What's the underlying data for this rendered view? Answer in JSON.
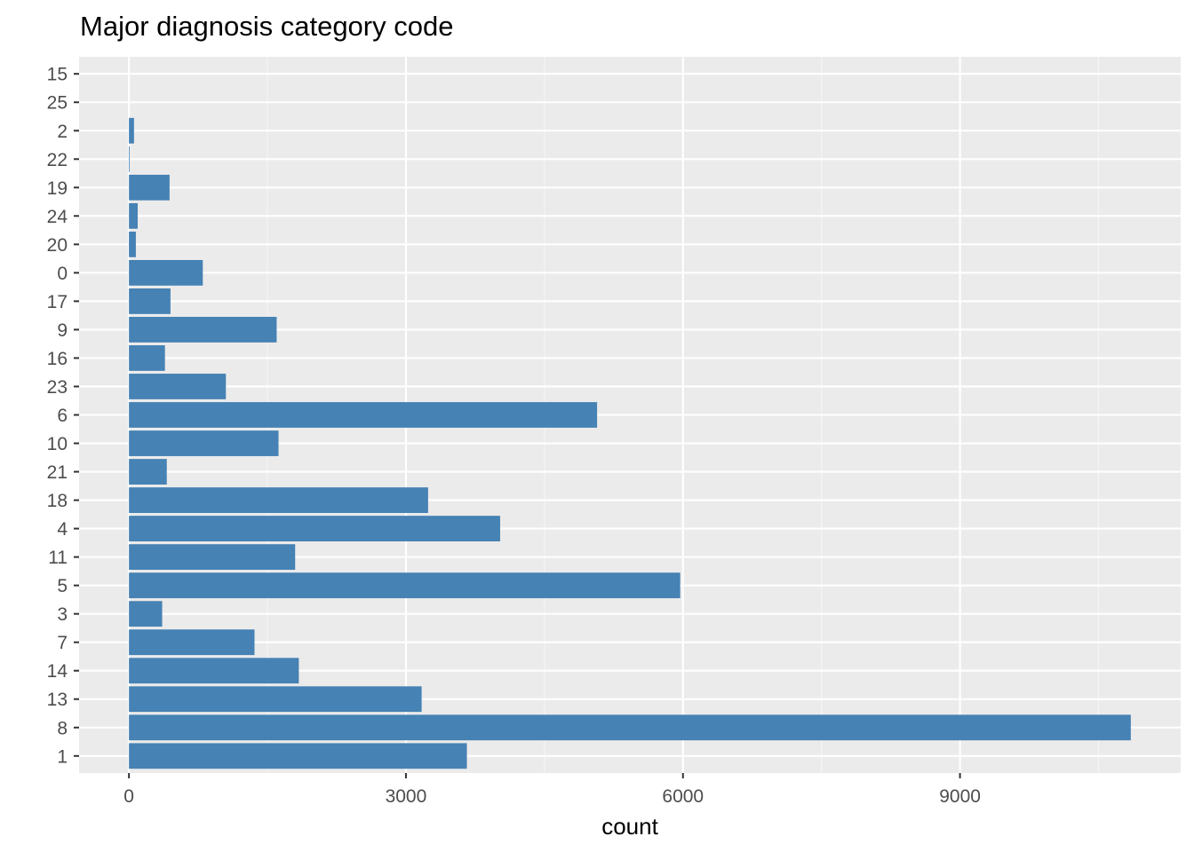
{
  "chart_data": {
    "type": "bar",
    "orientation": "horizontal",
    "title": "Major diagnosis category code",
    "xlabel": "count",
    "ylabel": "",
    "categories": [
      "15",
      "25",
      "2",
      "22",
      "19",
      "24",
      "20",
      "0",
      "17",
      "9",
      "16",
      "23",
      "6",
      "10",
      "21",
      "18",
      "4",
      "11",
      "5",
      "3",
      "7",
      "14",
      "13",
      "8",
      "1"
    ],
    "values": [
      0,
      0,
      55,
      8,
      440,
      95,
      75,
      800,
      450,
      1600,
      390,
      1050,
      5070,
      1620,
      410,
      3240,
      4020,
      1800,
      5970,
      360,
      1360,
      1840,
      3170,
      10850,
      3660
    ],
    "xlim": [
      -540,
      11390
    ],
    "xticks": [
      0,
      3000,
      6000,
      9000
    ],
    "grid": true,
    "legend": "none",
    "colors": {
      "bar": "#4682b4",
      "panel": "#ebebeb",
      "grid_major": "#ffffff",
      "grid_minor": "#f5f5f5",
      "tick_text": "#4d4d4d",
      "tick_mark": "#333333"
    }
  }
}
